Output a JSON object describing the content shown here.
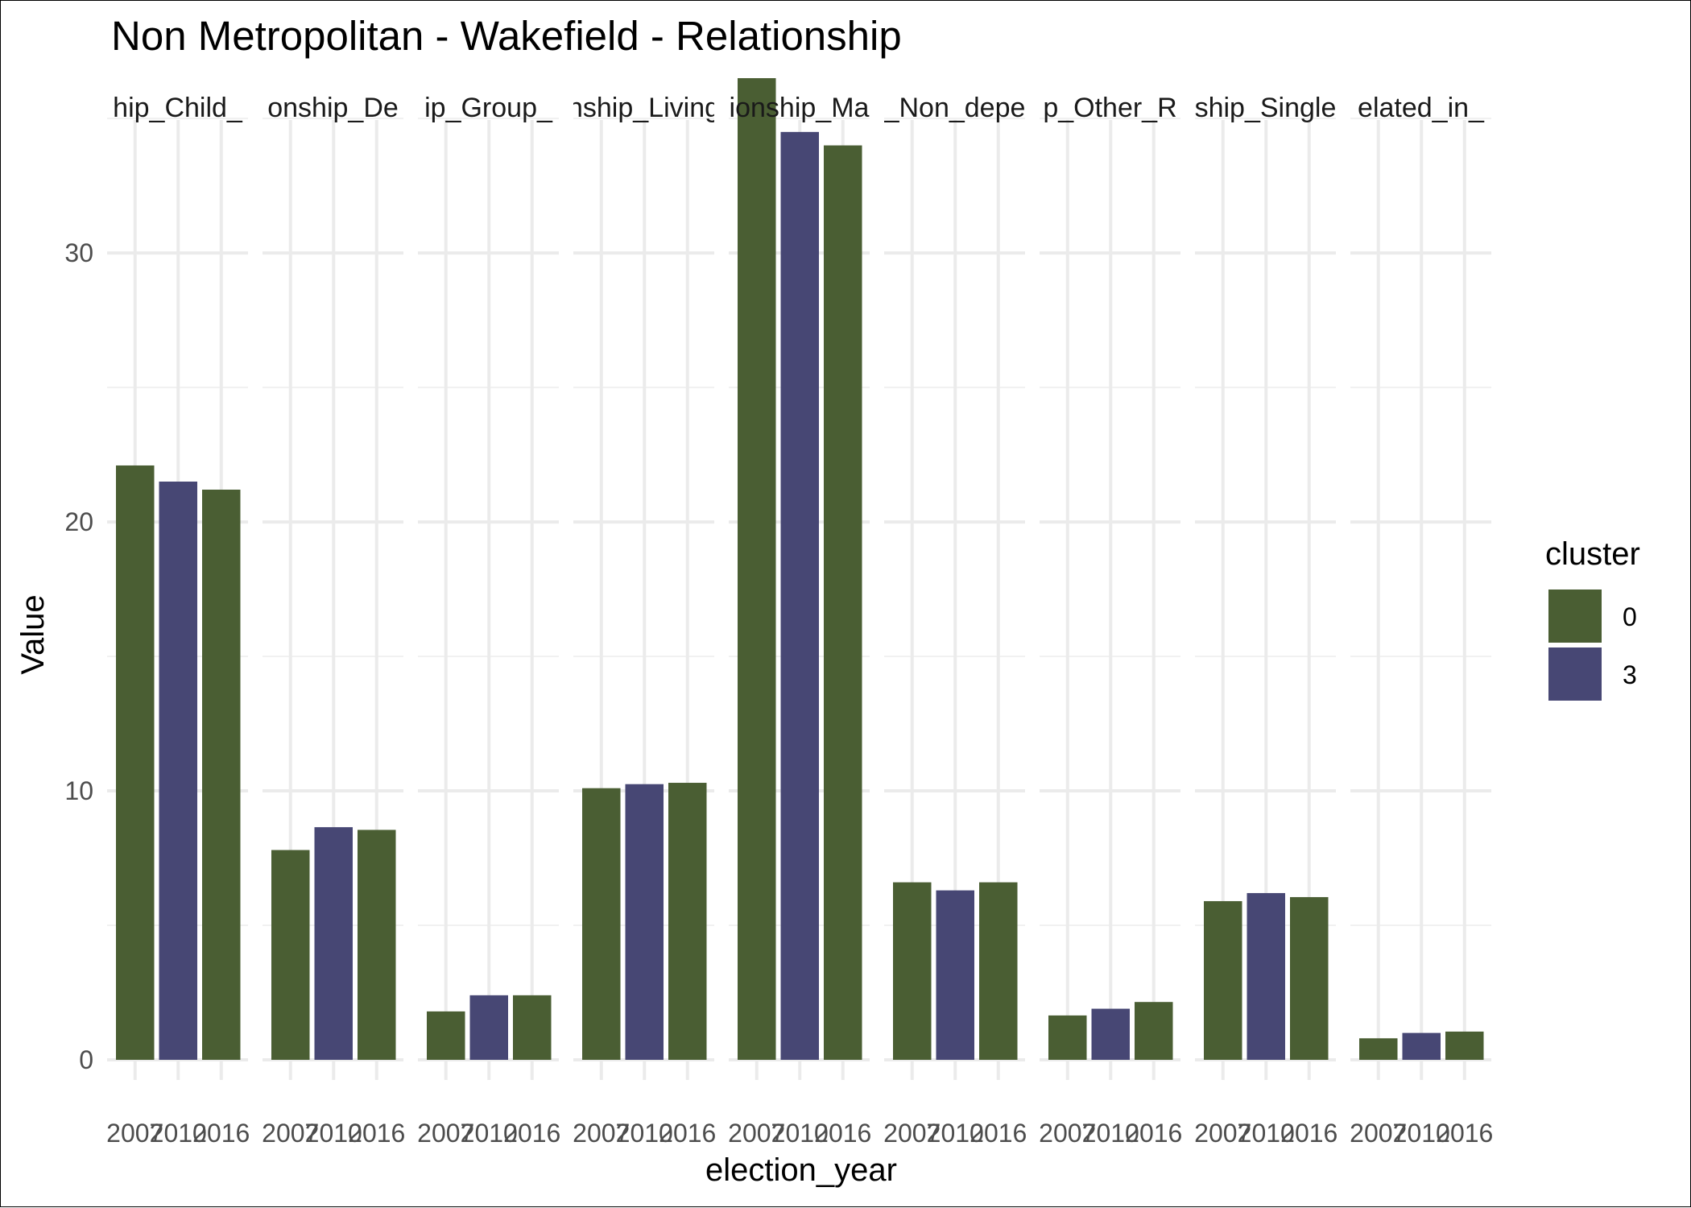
{
  "chart_data": {
    "type": "bar",
    "title": "Non Metropolitan - Wakefield - Relationship",
    "xlabel": "election_year",
    "ylabel": "Value",
    "ylim": [
      0,
      37.4
    ],
    "y_ticks": [
      0,
      10,
      20,
      30
    ],
    "x_tick_labels": [
      "2007",
      "2010",
      "2016"
    ],
    "grid": true,
    "legend": {
      "title": "cluster",
      "placement": "right",
      "entries": [
        {
          "label": "0",
          "color": "#4a5e33"
        },
        {
          "label": "3",
          "color": "#474774"
        }
      ]
    },
    "facets": [
      {
        "strip": "hip_Child_",
        "values": [
          22.1,
          21.5,
          21.2
        ],
        "clusters": [
          "0",
          "3",
          "0"
        ]
      },
      {
        "strip": "onship_De",
        "values": [
          7.8,
          8.65,
          8.55
        ],
        "clusters": [
          "0",
          "3",
          "0"
        ]
      },
      {
        "strip": "ip_Group_",
        "values": [
          1.8,
          2.4,
          2.4
        ],
        "clusters": [
          "0",
          "3",
          "0"
        ]
      },
      {
        "strip": "nship_Living",
        "values": [
          10.1,
          10.25,
          10.3
        ],
        "clusters": [
          "0",
          "3",
          "0"
        ]
      },
      {
        "strip": "ionship_Ma",
        "values": [
          36.5,
          34.5,
          34.0
        ],
        "clusters": [
          "0",
          "3",
          "0"
        ]
      },
      {
        "strip": "_Non_depe",
        "values": [
          6.6,
          6.3,
          6.6
        ],
        "clusters": [
          "0",
          "3",
          "0"
        ]
      },
      {
        "strip": "p_Other_R",
        "values": [
          1.65,
          1.9,
          2.15
        ],
        "clusters": [
          "0",
          "3",
          "0"
        ]
      },
      {
        "strip": "ship_Single",
        "values": [
          5.9,
          6.2,
          6.05
        ],
        "clusters": [
          "0",
          "3",
          "0"
        ]
      },
      {
        "strip": "elated_in_",
        "values": [
          0.8,
          1.0,
          1.05
        ],
        "clusters": [
          "0",
          "3",
          "0"
        ]
      }
    ]
  }
}
